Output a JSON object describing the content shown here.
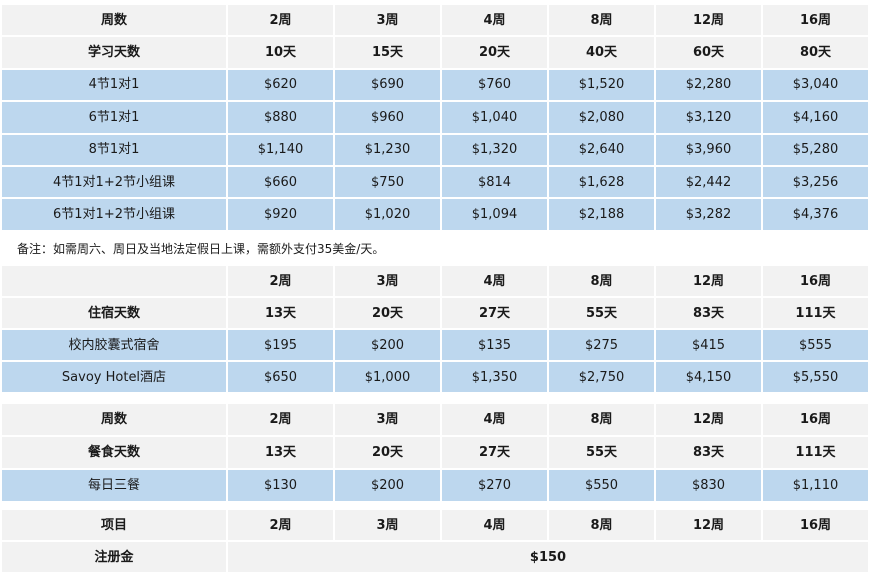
{
  "tuition": {
    "header": [
      "周数",
      "2周",
      "3周",
      "4周",
      "8周",
      "12周",
      "16周"
    ],
    "days": [
      "学习天数",
      "10天",
      "15天",
      "20天",
      "40天",
      "60天",
      "80天"
    ],
    "rows": [
      [
        "4节1对1",
        "$620",
        "$690",
        "$760",
        "$1,520",
        "$2,280",
        "$3,040"
      ],
      [
        "6节1对1",
        "$880",
        "$960",
        "$1,040",
        "$2,080",
        "$3,120",
        "$4,160"
      ],
      [
        "8节1对1",
        "$1,140",
        "$1,230",
        "$1,320",
        "$2,640",
        "$3,960",
        "$5,280"
      ],
      [
        "4节1对1+2节小组课",
        "$660",
        "$750",
        "$814",
        "$1,628",
        "$2,442",
        "$3,256"
      ],
      [
        "6节1对1+2节小组课",
        "$920",
        "$1,020",
        "$1,094",
        "$2,188",
        "$3,282",
        "$4,376"
      ]
    ]
  },
  "note": "备注：如需周六、周日及当地法定假日上课，需额外支付35美金/天。",
  "accommodation": {
    "header": [
      "",
      "2周",
      "3周",
      "4周",
      "8周",
      "12周",
      "16周"
    ],
    "days": [
      "住宿天数",
      "13天",
      "20天",
      "27天",
      "55天",
      "83天",
      "111天"
    ],
    "rows": [
      [
        "校内胶囊式宿舍",
        "$195",
        "$200",
        "$135",
        "$275",
        "$415",
        "$555"
      ],
      [
        "Savoy Hotel酒店",
        "$650",
        "$1,000",
        "$1,350",
        "$2,750",
        "$4,150",
        "$5,550"
      ]
    ]
  },
  "meals": {
    "header": [
      "周数",
      "2周",
      "3周",
      "4周",
      "8周",
      "12周",
      "16周"
    ],
    "days": [
      "餐食天数",
      "13天",
      "20天",
      "27天",
      "55天",
      "83天",
      "111天"
    ],
    "rows": [
      [
        "每日三餐",
        "$130",
        "$200",
        "$270",
        "$550",
        "$830",
        "$1,110"
      ]
    ]
  },
  "registration": {
    "header": [
      "项目",
      "2周",
      "3周",
      "4周",
      "8周",
      "12周",
      "16周"
    ],
    "label": "注册金",
    "fee": "$150"
  },
  "colors": {
    "header_bg": "#f2f2f2",
    "data_bg": "#bdd7ee",
    "border": "#ffffff"
  }
}
